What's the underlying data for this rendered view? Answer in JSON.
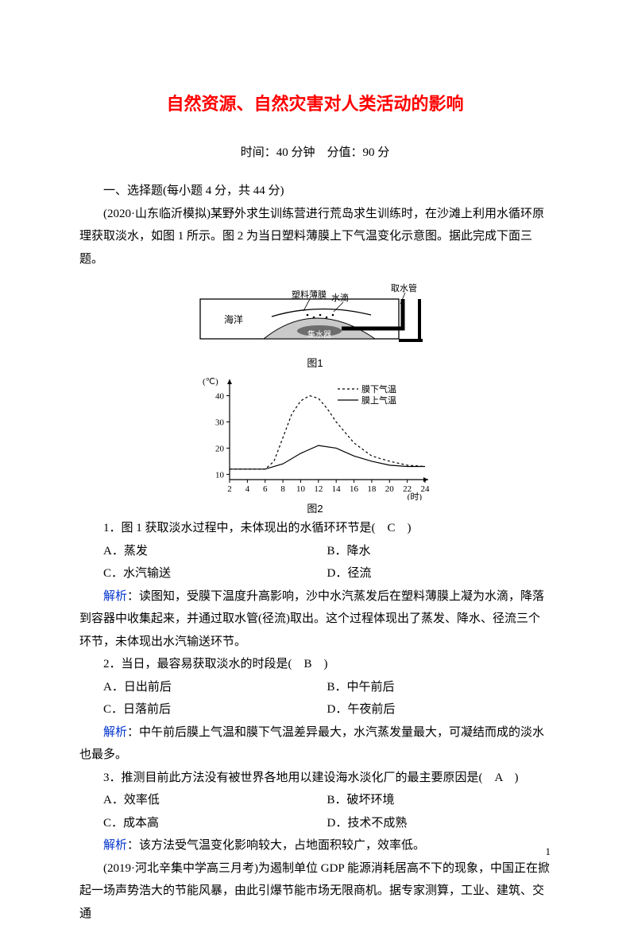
{
  "title": "自然资源、自然灾害对人类活动的影响",
  "meta": {
    "time_label": "时间：",
    "time_val": "40 分钟",
    "sep": "　",
    "score_label": "分值：",
    "score_val": "90 分"
  },
  "section_header": "一、选择题(每小题 4 分，共 44 分)",
  "intro": "(2020·山东临沂模拟)某野外求生训练营进行荒岛求生训练时，在沙滩上利用水循环原理获取淡水，如图 1 所示。图 2 为当日塑料薄膜上下气温变化示意图。据此完成下面三题。",
  "fig1": {
    "caption": "图1",
    "text": {
      "haiyang": "海洋",
      "mo": "塑料薄膜",
      "shuidi": "水滴",
      "guan": "取水管",
      "xu": "集水器"
    },
    "colors": {
      "fill": "#c9c9c9",
      "dark": "#6d6d6d",
      "line": "#000000",
      "black": "#000000"
    }
  },
  "chart": {
    "type": "line",
    "caption": "图2",
    "x_ticks": [
      2,
      4,
      6,
      8,
      10,
      12,
      14,
      16,
      18,
      20,
      22,
      24
    ],
    "x_unit": "(时)",
    "y_ticks": [
      10,
      20,
      30,
      40
    ],
    "y_unit": "(℃)",
    "ylim": [
      8,
      45
    ],
    "legend_under": {
      "label": "膜下气温",
      "dash": "3,3",
      "color": "#000000"
    },
    "legend_upper": {
      "label": "膜上气温",
      "dash": "",
      "color": "#000000"
    },
    "series": [
      {
        "name": "under",
        "dash": "3,3",
        "width": 1.2,
        "color": "#000000",
        "points": [
          [
            2,
            12
          ],
          [
            4,
            12
          ],
          [
            6,
            12
          ],
          [
            7,
            15
          ],
          [
            8,
            24
          ],
          [
            9,
            33
          ],
          [
            10,
            38
          ],
          [
            11,
            40
          ],
          [
            12,
            39
          ],
          [
            13,
            35
          ],
          [
            14,
            30
          ],
          [
            16,
            22
          ],
          [
            18,
            17
          ],
          [
            20,
            15
          ],
          [
            22,
            13.5
          ],
          [
            24,
            13
          ]
        ]
      },
      {
        "name": "upper",
        "dash": "",
        "width": 1.2,
        "color": "#000000",
        "points": [
          [
            2,
            12
          ],
          [
            4,
            12
          ],
          [
            6,
            12
          ],
          [
            8,
            14
          ],
          [
            10,
            18
          ],
          [
            12,
            21
          ],
          [
            14,
            20
          ],
          [
            16,
            17
          ],
          [
            18,
            15
          ],
          [
            20,
            13.5
          ],
          [
            22,
            13
          ],
          [
            24,
            13
          ]
        ]
      }
    ],
    "axis_color": "#000000",
    "font_size": 11
  },
  "q1": {
    "stem_pre": "1．图 1 获取淡水过程中，未体现出的水循环环节是(　",
    "ans": "C",
    "stem_post": "　)",
    "A": "A．蒸发",
    "B": "B．降水",
    "C": "C．水汽输送",
    "D": "D．径流",
    "analysis": "：读图知，受膜下温度升高影响，沙中水汽蒸发后在塑料薄膜上凝为水滴，降落到容器中收集起来，并通过取水管(径流)取出。这个过程体现出了蒸发、降水、径流三个环节，未体现出水汽输送环节。"
  },
  "q2": {
    "stem_pre": "2．当日，最容易获取淡水的时段是(　",
    "ans": "B",
    "stem_post": "　)",
    "A": "A．日出前后",
    "B": "B．中午前后",
    "C": "C．日落前后",
    "D": "D．午夜前后",
    "analysis": "：中午前后膜上气温和膜下气温差异最大，水汽蒸发量最大，可凝结而成的淡水也最多。"
  },
  "q3": {
    "stem_pre": "3．推测目前此方法没有被世界各地用以建设海水淡化厂的最主要原因是(　",
    "ans": "A",
    "stem_post": "　)",
    "A": "A．效率低",
    "B": "B．破坏环境",
    "C": "C．成本高",
    "D": "D．技术不成熟",
    "analysis": "：该方法受气温变化影响较大，占地面积较广，效率低。"
  },
  "tail": "(2019·河北辛集中学高三月考)为遏制单位 GDP 能源消耗居高不下的现象，中国正在掀起一场声势浩大的节能风暴，由此引爆节能市场无限商机。据专家测算，工业、建筑、交通",
  "analysis_label": "解析",
  "page_number": "1"
}
